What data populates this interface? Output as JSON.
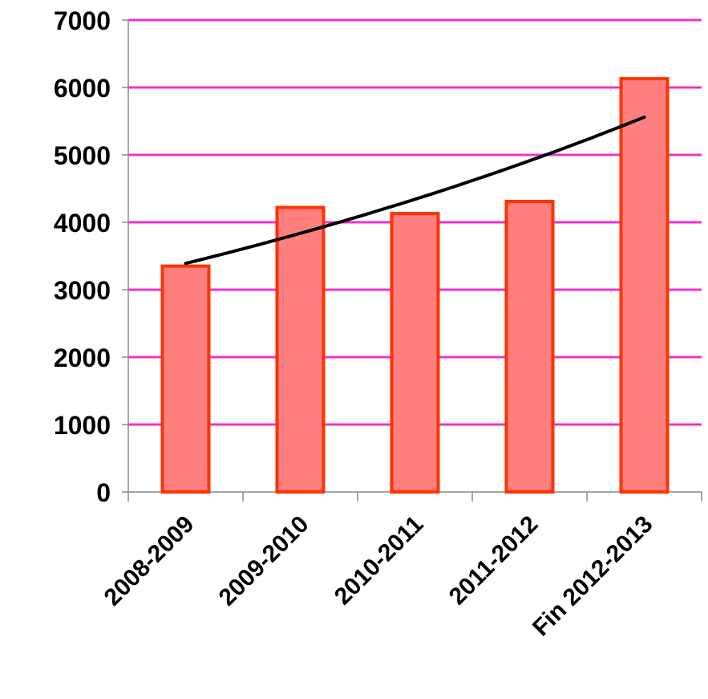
{
  "chart_data": {
    "type": "bar",
    "categories": [
      "2008-2009",
      "2009-2010",
      "2010-2011",
      "2011-2012",
      "Fin 2012-2013"
    ],
    "values": [
      3350,
      4220,
      4130,
      4310,
      6130
    ],
    "trendline": {
      "type": "exponential",
      "start_value": 3390,
      "end_value": 5560
    },
    "ylim": [
      0,
      7000
    ],
    "yticks": [
      "0",
      "1000",
      "2000",
      "3000",
      "4000",
      "5000",
      "6000",
      "7000"
    ],
    "grid": true,
    "legend": "none",
    "title": "",
    "xlabel": "",
    "ylabel": "",
    "colors": {
      "bar_fill": "#ff7f7f",
      "bar_stroke": "#ff3300",
      "grid": "#ee33cc",
      "trend": "#000000",
      "axis": "#888888"
    }
  }
}
